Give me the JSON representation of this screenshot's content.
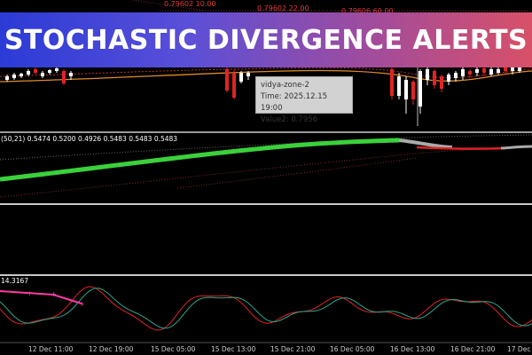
{
  "banner": {
    "title": "STOCHASTIC DIVERGENCE ALERTS"
  },
  "price_labels": [
    "0.79602 10.00",
    "0.79602 22.00",
    "0.79606 60.00"
  ],
  "tooltip": {
    "line1": "vidya-zone-2",
    "line2": "Time: 2025.12.15 19:00",
    "line3": "Value2: 0.7956"
  },
  "indicator_pane": {
    "label": "(50,21) 0.5474 0.5200 0.4926 0.5483 0.5483 0.5483"
  },
  "stoch_pane": {
    "label": "14.3167"
  },
  "time_axis": [
    "12 Dec 11:00",
    "12 Dec 19:00",
    "15 Dec 05:00",
    "15 Dec 13:00",
    "15 Dec 21:00",
    "16 Dec 05:00",
    "16 Dec 13:00",
    "16 Dec 21:00",
    "17 Dec 05:00"
  ],
  "colors": {
    "bull": "#ffffff",
    "bear": "#e02424",
    "ma_orange": "#e08a2a",
    "green_line": "#3ad13a",
    "stoch_red": "#e02424",
    "stoch_teal": "#2fa58c",
    "divergence": "#ff3aa0"
  }
}
